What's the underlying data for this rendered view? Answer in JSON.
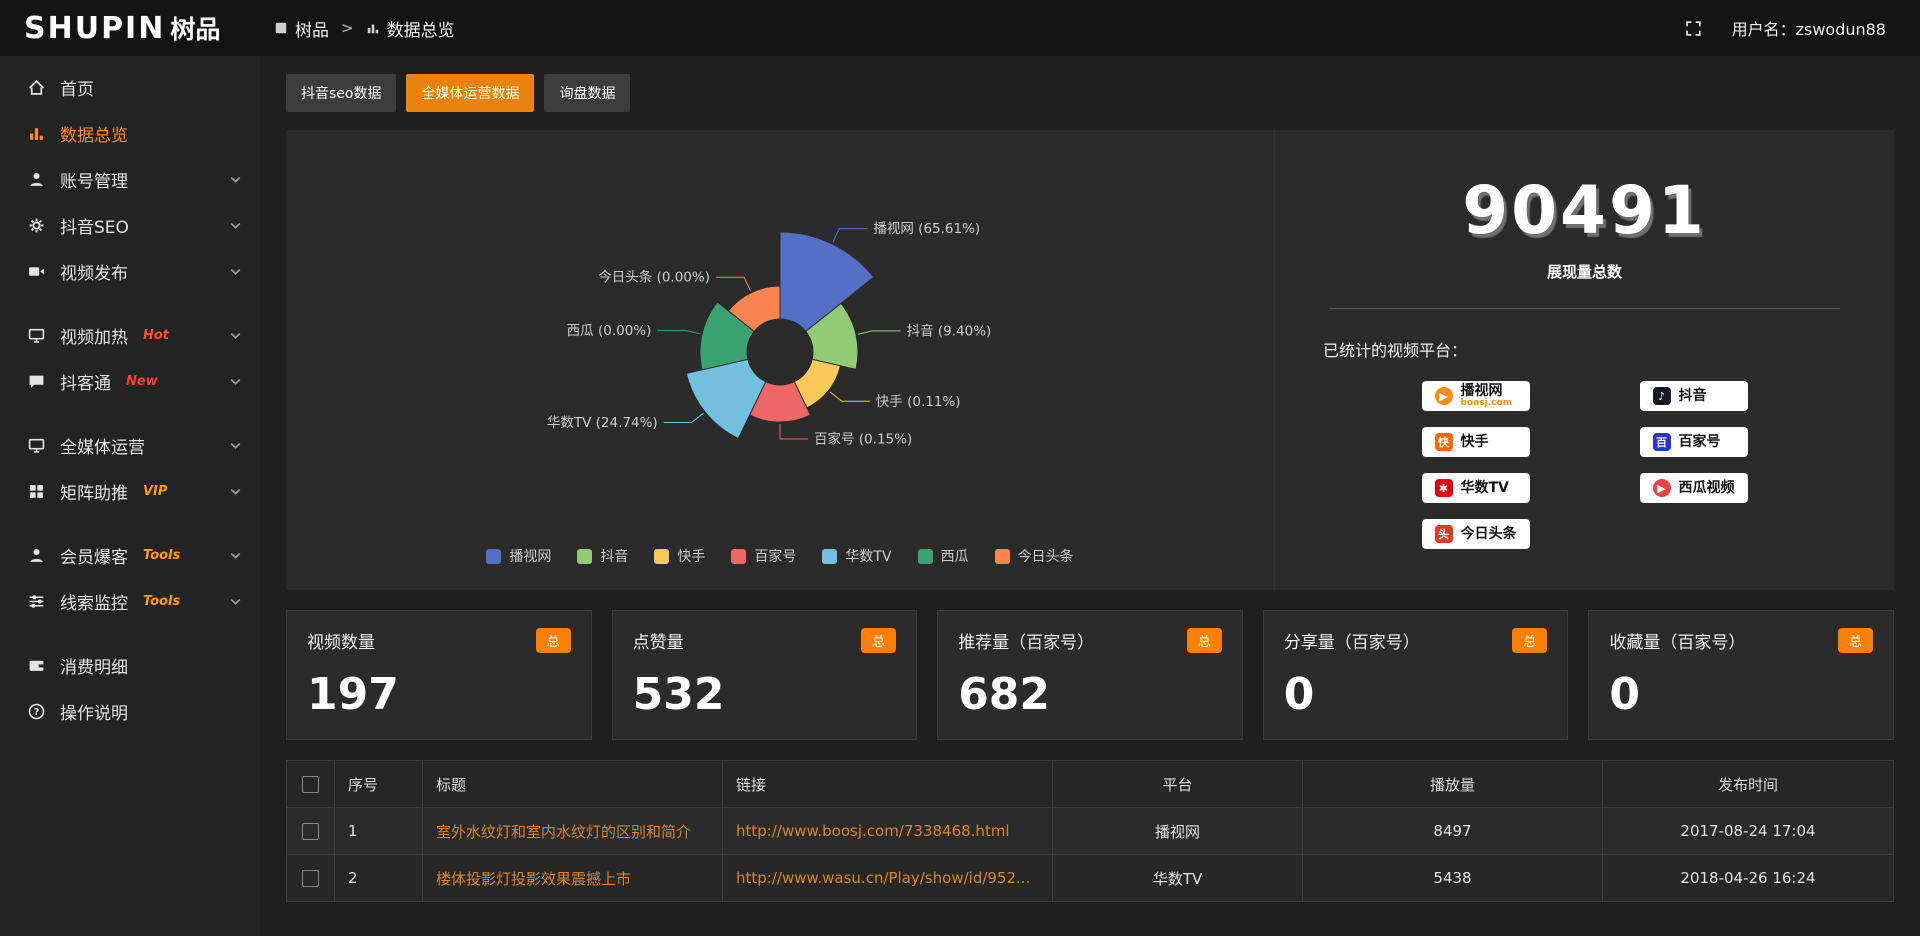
{
  "topbar": {
    "logo_primary": "SHUPIN",
    "logo_secondary": "树品",
    "breadcrumb_root": "树品",
    "breadcrumb_sep": ">",
    "breadcrumb_current": "数据总览",
    "username": "用户名：zswodun88"
  },
  "sidebar": {
    "items": [
      {
        "label": "首页",
        "icon": "home"
      },
      {
        "label": "数据总览",
        "icon": "chart",
        "active": true
      },
      {
        "label": "账号管理",
        "icon": "user",
        "chevron": true
      },
      {
        "label": "抖音SEO",
        "icon": "gear",
        "chevron": true
      },
      {
        "label": "视频发布",
        "icon": "video",
        "chevron": true
      },
      {
        "label": "视频加热",
        "icon": "monitor",
        "tag": "Hot",
        "chevron": true,
        "gap_before": true
      },
      {
        "label": "抖客通",
        "icon": "chat",
        "tag": "New",
        "chevron": true
      },
      {
        "label": "全媒体运营",
        "icon": "monitor",
        "chevron": true,
        "gap_before": true
      },
      {
        "label": "矩阵助推",
        "icon": "grid",
        "tag": "VIP",
        "chevron": true
      },
      {
        "label": "会员爆客",
        "icon": "user",
        "tag": "Tools",
        "chevron": true,
        "gap_before": true
      },
      {
        "label": "线索监控",
        "icon": "sliders",
        "tag": "Tools",
        "chevron": true
      },
      {
        "label": "消费明细",
        "icon": "wallet",
        "gap_before": true
      },
      {
        "label": "操作说明",
        "icon": "question"
      }
    ]
  },
  "tabs": [
    {
      "label": "抖音seo数据",
      "active": false
    },
    {
      "label": "全媒体运营数据",
      "active": true
    },
    {
      "label": "询盘数据",
      "active": false
    }
  ],
  "chart_data": {
    "type": "pie",
    "style": "rose",
    "labels": [
      "播视网",
      "抖音",
      "快手",
      "百家号",
      "华数TV",
      "西瓜",
      "今日头条"
    ],
    "values": [
      65.61,
      9.4,
      0.11,
      0.15,
      24.74,
      0,
      0
    ],
    "colors": [
      "#5470c6",
      "#91cc75",
      "#fac858",
      "#ee6666",
      "#73c0de",
      "#3ba272",
      "#fc8452"
    ],
    "radius_hint": [
      120,
      78,
      62,
      70,
      96,
      80,
      66
    ],
    "legend_position": "bottom"
  },
  "summary": {
    "total_value": "90491",
    "total_label": "展现量总数",
    "platforms_label": "已统计的视频平台：",
    "platforms": [
      {
        "name": "播视网",
        "sub": "boosj.com",
        "icon": "boosj"
      },
      {
        "name": "抖音",
        "icon": "douyin"
      },
      {
        "name": "快手",
        "icon": "kuaishou"
      },
      {
        "name": "百家号",
        "icon": "baijia"
      },
      {
        "name": "华数TV",
        "icon": "wasu"
      },
      {
        "name": "西瓜视频",
        "icon": "xigua"
      },
      {
        "name": "今日头条",
        "icon": "toutiao"
      }
    ]
  },
  "stat_cards": [
    {
      "title": "视频数量",
      "badge": "总",
      "value": "197"
    },
    {
      "title": "点赞量",
      "badge": "总",
      "value": "532"
    },
    {
      "title": "推荐量（百家号）",
      "badge": "总",
      "value": "682"
    },
    {
      "title": "分享量（百家号）",
      "badge": "总",
      "value": "0"
    },
    {
      "title": "收藏量（百家号）",
      "badge": "总",
      "value": "0"
    }
  ],
  "table": {
    "headers": [
      "序号",
      "标题",
      "链接",
      "平台",
      "播放量",
      "发布时间"
    ],
    "rows": [
      {
        "index": "1",
        "title": "室外水纹灯和室内水纹灯的区别和简介",
        "link": "http://www.boosj.com/7338468.html",
        "platform": "播视网",
        "views": "8497",
        "time": "2017-08-24 17:04"
      },
      {
        "index": "2",
        "title": "楼体投影灯投影效果震撼上市",
        "link": "http://www.wasu.cn/Play/show/id/952...",
        "platform": "华数TV",
        "views": "5438",
        "time": "2018-04-26 16:24"
      }
    ]
  }
}
